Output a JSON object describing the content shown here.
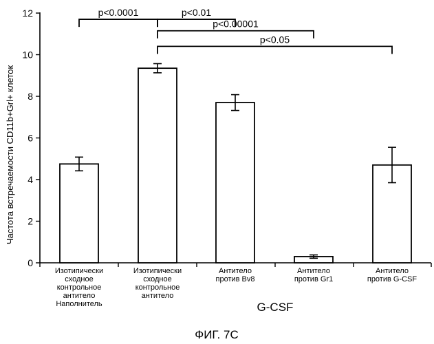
{
  "chart_data": {
    "type": "bar",
    "ylabel": "Частота встречаемости CD11b+Grl+ клеток",
    "ylim": [
      0,
      12
    ],
    "yticks": [
      "0",
      "2",
      "4",
      "6",
      "8",
      "10",
      "12"
    ],
    "categories": [
      [
        "Изотипически",
        "сходное",
        "контрольное",
        "антитело",
        "Наполнитель"
      ],
      [
        "Изотипически",
        "сходное",
        "контрольное",
        "антитело"
      ],
      [
        "Антитело",
        "против Bv8"
      ],
      [
        "Антитело",
        "против Gr1"
      ],
      [
        "Антитело",
        "против G-CSF"
      ]
    ],
    "values": [
      4.75,
      9.35,
      7.7,
      0.3,
      4.7
    ],
    "errors": [
      0.33,
      0.22,
      0.38,
      0.08,
      0.85
    ],
    "comparisons": [
      {
        "from": 0,
        "to": 1,
        "label": "p<0.0001",
        "y": 11.7
      },
      {
        "from": 1,
        "to": 2,
        "label": "p<0.01",
        "y": 11.7
      },
      {
        "from": 1,
        "to": 3,
        "label": "p<0.00001",
        "y": 11.15
      },
      {
        "from": 1,
        "to": 4,
        "label": "p<0.05",
        "y": 10.4
      }
    ],
    "group_label": "G-CSF"
  },
  "caption": "ФИГ. 7С",
  "colors": {
    "bar_fill": "#ffffff",
    "stroke": "#000000"
  }
}
